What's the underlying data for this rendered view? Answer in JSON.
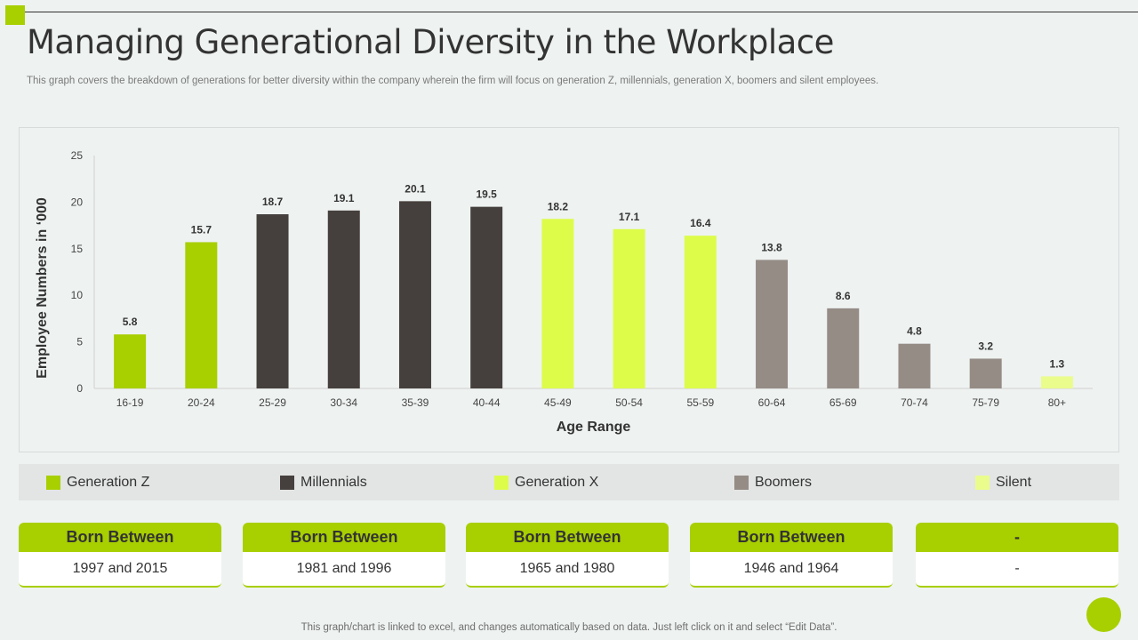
{
  "page": {
    "title": "Managing Generational Diversity in the Workplace",
    "subtitle": "This graph covers the breakdown of generations for better diversity within the company wherein the firm will focus on generation Z, millennials, generation X, boomers and silent employees.",
    "footer": "This graph/chart is linked to excel,  and changes automatically based on data. Just left click on it and select “Edit Data”."
  },
  "colors": {
    "accent": "#a8cf00",
    "generation_z": "#a8cf00",
    "millennials": "#45403d",
    "generation_x": "#ddfc4a",
    "boomers": "#958c86",
    "silent": "#eafc8c"
  },
  "chart_data": {
    "type": "bar",
    "xlabel": "Age Range",
    "ylabel": "Employee Numbers in ‘000",
    "ylim": [
      0,
      25
    ],
    "yticks": [
      0,
      5,
      10,
      15,
      20,
      25
    ],
    "grid": false,
    "categories": [
      "16-19",
      "20-24",
      "25-29",
      "30-34",
      "35-39",
      "40-44",
      "45-49",
      "50-54",
      "55-59",
      "60-64",
      "65-69",
      "70-74",
      "75-79",
      "80+"
    ],
    "values": [
      5.8,
      15.7,
      18.7,
      19.1,
      20.1,
      19.5,
      18.2,
      17.1,
      16.4,
      13.8,
      8.6,
      4.8,
      3.2,
      1.3
    ],
    "value_labels": [
      "5.8",
      "15.7",
      "18.7",
      "19.1",
      "20.1",
      "19.5",
      "18.2",
      "17.1",
      "16.4",
      "13.8",
      "8.6",
      "4.8",
      "3.2",
      "1.3"
    ],
    "bar_groups": [
      "generation_z",
      "generation_z",
      "millennials",
      "millennials",
      "millennials",
      "millennials",
      "generation_x",
      "generation_x",
      "generation_x",
      "boomers",
      "boomers",
      "boomers",
      "boomers",
      "silent"
    ]
  },
  "legend": {
    "items": [
      {
        "key": "generation_z",
        "label": "Generation Z"
      },
      {
        "key": "millennials",
        "label": "Millennials"
      },
      {
        "key": "generation_x",
        "label": "Generation X"
      },
      {
        "key": "boomers",
        "label": "Boomers"
      },
      {
        "key": "silent",
        "label": "Silent"
      }
    ]
  },
  "cards": [
    {
      "header": "Born Between",
      "value": "1997 and 2015"
    },
    {
      "header": "Born Between",
      "value": "1981 and 1996"
    },
    {
      "header": "Born Between",
      "value": "1965 and 1980"
    },
    {
      "header": "Born Between",
      "value": "1946 and 1964"
    },
    {
      "header": "-",
      "value": "-"
    }
  ]
}
